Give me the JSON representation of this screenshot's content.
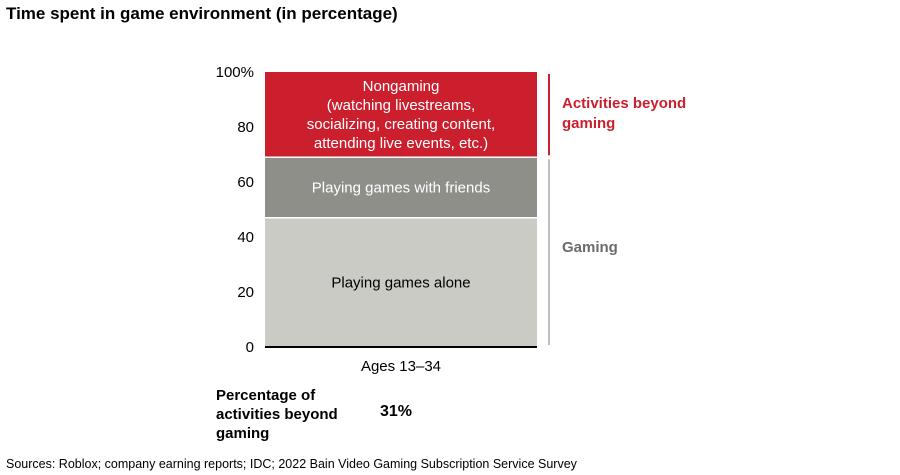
{
  "title": "Time spent in game environment (in percentage)",
  "chart_data": {
    "type": "bar",
    "stacked": true,
    "categories": [
      "Ages 13–34"
    ],
    "yticks": [
      "0",
      "20",
      "40",
      "60",
      "80",
      "100%"
    ],
    "ylim": [
      0,
      100
    ],
    "series": [
      {
        "name": "Playing games alone",
        "label_lines": [
          "Playing games alone"
        ],
        "values": [
          47
        ],
        "color": "#cbcbc5",
        "text_color": "#000000"
      },
      {
        "name": "Playing games with friends",
        "label_lines": [
          "Playing games with friends"
        ],
        "values": [
          22
        ],
        "color": "#8f8f8a",
        "text_color": "#ffffff"
      },
      {
        "name": "Nongaming",
        "label_lines": [
          "Nongaming",
          "(watching livestreams,",
          "socializing, creating content,",
          "attending live events, etc.)"
        ],
        "values": [
          31
        ],
        "color": "#cc1f2e",
        "text_color": "#ffffff"
      }
    ],
    "brackets": [
      {
        "label_lines": [
          "Activities beyond",
          "gaming"
        ],
        "from": 69,
        "to": 100,
        "color": "#cc1f2e"
      },
      {
        "label_lines": [
          "Gaming"
        ],
        "from": 0,
        "to": 69,
        "color": "#6b6b6b"
      }
    ]
  },
  "footer": {
    "label": "Percentage of activities beyond gaming",
    "value": "31%"
  },
  "sources": "Sources: Roblox; company earning reports; IDC; 2022 Bain Video Gaming Subscription Service Survey"
}
